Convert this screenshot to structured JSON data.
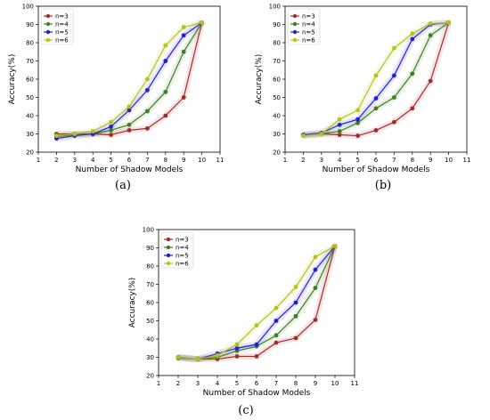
{
  "series_colors": [
    "#a52a2a",
    "#3f7f1f",
    "#1f1fd6",
    "#b5c21a"
  ],
  "chart_data": [
    {
      "type": "line",
      "caption": "(a)",
      "xlabel": "Number of Shadow Models",
      "ylabel": "Accuracy(%)",
      "xlim": [
        1,
        11
      ],
      "ylim": [
        20,
        100
      ],
      "xticks": [
        1,
        2,
        3,
        4,
        5,
        6,
        7,
        8,
        9,
        10,
        11
      ],
      "yticks": [
        20,
        30,
        40,
        50,
        60,
        70,
        80,
        90,
        100
      ],
      "legend_position": "top-left",
      "x": [
        2,
        3,
        4,
        5,
        6,
        7,
        8,
        9,
        10
      ],
      "series": [
        {
          "name": "n=3",
          "values": [
            30,
            30,
            30,
            29.5,
            32,
            33,
            40,
            50,
            91
          ]
        },
        {
          "name": "n=4",
          "values": [
            28.5,
            29.5,
            30,
            32,
            35,
            42.5,
            53,
            75,
            91
          ]
        },
        {
          "name": "n=5",
          "values": [
            27.5,
            29,
            30,
            34,
            43,
            54,
            70,
            84,
            91
          ]
        },
        {
          "name": "n=6",
          "values": [
            29,
            30,
            31.5,
            36.5,
            45,
            60,
            78.5,
            88.5,
            91
          ]
        }
      ]
    },
    {
      "type": "line",
      "caption": "(b)",
      "xlabel": "Number of Shadow Models",
      "ylabel": "Accuracy(%)",
      "xlim": [
        1,
        11
      ],
      "ylim": [
        20,
        100
      ],
      "xticks": [
        1,
        2,
        3,
        4,
        5,
        6,
        7,
        8,
        9,
        10,
        11
      ],
      "yticks": [
        20,
        30,
        40,
        50,
        60,
        70,
        80,
        90,
        100
      ],
      "legend_position": "top-left",
      "x": [
        2,
        3,
        4,
        5,
        6,
        7,
        8,
        9,
        10
      ],
      "series": [
        {
          "name": "n=3",
          "values": [
            29.5,
            30,
            29.5,
            29,
            32,
            36.5,
            44,
            59,
            91
          ]
        },
        {
          "name": "n=4",
          "values": [
            29,
            30,
            31.5,
            36,
            44,
            50,
            63,
            84,
            91
          ]
        },
        {
          "name": "n=5",
          "values": [
            29.5,
            30.5,
            35,
            38,
            49.5,
            62,
            82,
            90,
            91
          ]
        },
        {
          "name": "n=6",
          "values": [
            29,
            30,
            38,
            43,
            62,
            77,
            85,
            90.5,
            91
          ]
        }
      ]
    },
    {
      "type": "line",
      "caption": "(c)",
      "xlabel": "Number of Shadow Models",
      "ylabel": "Accuracy(%)",
      "xlim": [
        1,
        11
      ],
      "ylim": [
        20,
        100
      ],
      "xticks": [
        1,
        2,
        3,
        4,
        5,
        6,
        7,
        8,
        9,
        10,
        11
      ],
      "yticks": [
        20,
        30,
        40,
        50,
        60,
        70,
        80,
        90,
        100
      ],
      "legend_position": "top-left",
      "x": [
        2,
        3,
        4,
        5,
        6,
        7,
        8,
        9,
        10
      ],
      "series": [
        {
          "name": "n=3",
          "values": [
            30,
            29,
            29,
            30.5,
            30.5,
            38,
            40.5,
            50.5,
            91
          ]
        },
        {
          "name": "n=4",
          "values": [
            29.5,
            29,
            30,
            33.5,
            36,
            42,
            52.5,
            68,
            91
          ]
        },
        {
          "name": "n=5",
          "values": [
            30,
            29,
            32,
            35,
            37,
            50,
            60,
            78,
            91
          ]
        },
        {
          "name": "n=6",
          "values": [
            30,
            29,
            31,
            37,
            47.5,
            57,
            68.5,
            85,
            91
          ]
        }
      ]
    }
  ]
}
